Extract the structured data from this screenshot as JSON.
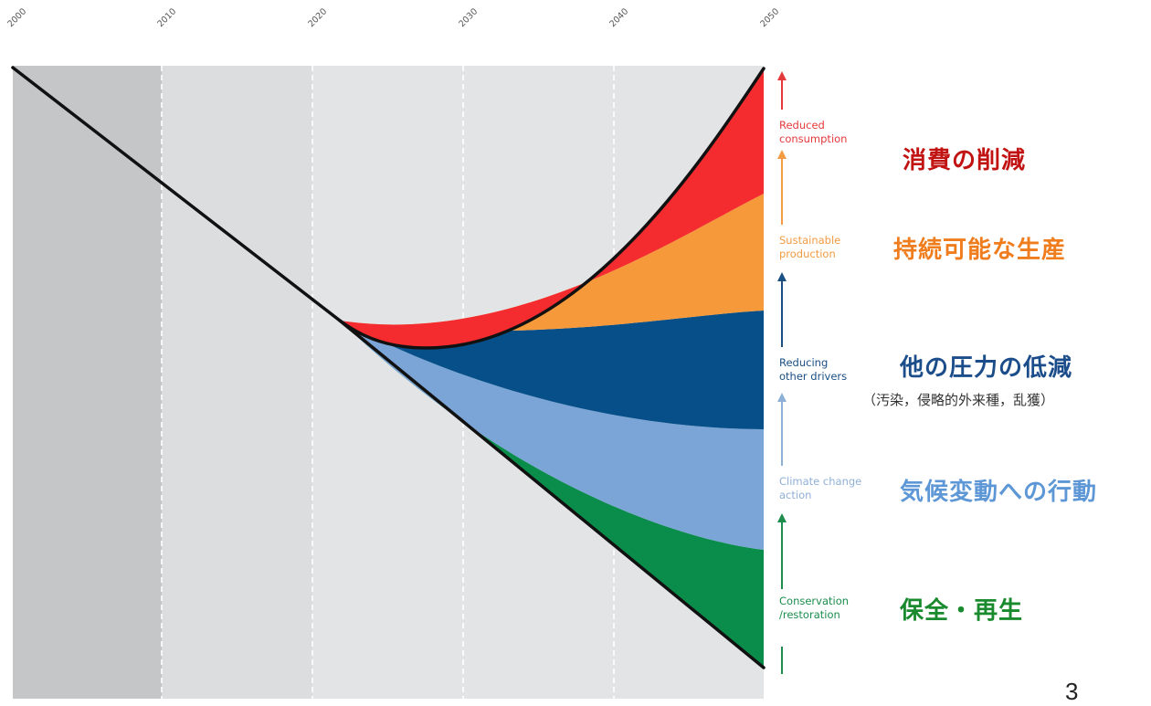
{
  "colors": {
    "past_band": "#c4c6c8",
    "recent_band": "#dcdddf",
    "future_band": "#e2e4e6",
    "gridline": "#ffffff",
    "baseline_curve": "#111111",
    "reduced_consumption": "#f42b2f",
    "sustainable_production": "#f6993a",
    "reducing_other_drivers": "#064f88",
    "climate_change_action": "#7aa5d6",
    "conservation_restoration": "#0a8d4a",
    "jp_red": "#c21313",
    "jp_orange": "#f07d1d",
    "jp_navy": "#1c4d8b",
    "jp_lightblue": "#5e97d6",
    "jp_green": "#198a2d"
  },
  "timeline": {
    "years": [
      "2000",
      "2010",
      "2020",
      "2030",
      "2040",
      "2050"
    ]
  },
  "actions": [
    {
      "key": "reduced_consumption",
      "en": [
        "Reduced",
        "consumption"
      ],
      "jp": "消費の削減",
      "sub": ""
    },
    {
      "key": "sustainable_production",
      "en": [
        "Sustainable",
        "production"
      ],
      "jp": "持続可能な生産",
      "sub": ""
    },
    {
      "key": "reducing_other_drivers",
      "en": [
        "Reducing",
        "other drivers"
      ],
      "jp": "他の圧力の低減",
      "sub": "（汚染，侵略的外来種，乱獲）"
    },
    {
      "key": "climate_change_action",
      "en": [
        "Climate change",
        "action"
      ],
      "jp": "気候変動への行動",
      "sub": ""
    },
    {
      "key": "conservation_restoration",
      "en": [
        "Conservation",
        "/restoration"
      ],
      "jp": "保全・再生",
      "sub": ""
    }
  ],
  "page_number": "3"
}
